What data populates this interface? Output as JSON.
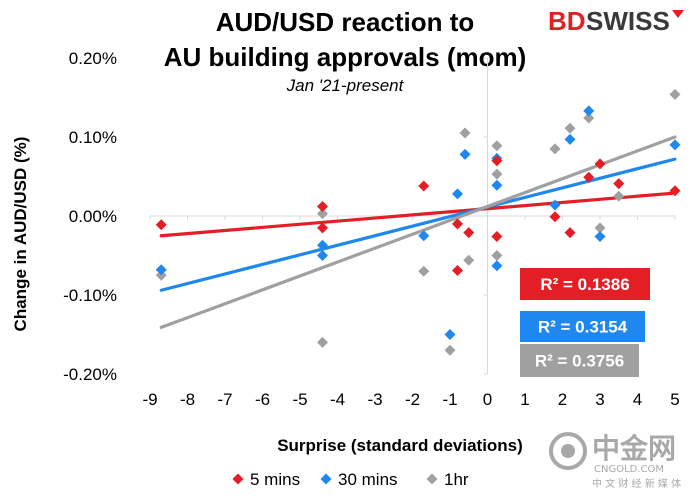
{
  "brand": {
    "bd": "BD",
    "swiss": "SWISS",
    "color_red": "#e31e24",
    "color_dark": "#3a3a3a"
  },
  "watermark": {
    "name": "中金网",
    "site": "CNGOLD.COM",
    "tagline": "中 文 财 经 新 媒 体",
    "color": "#9a9a9a"
  },
  "chart_data": {
    "type": "scatter",
    "title": "AUD/USD reaction to AU building approvals (mom)",
    "title_lines": [
      "AUD/USD reaction to",
      "AU building approvals (mom)"
    ],
    "subtitle": "Jan '21-present",
    "xlabel": "Surprise (standard deviations)",
    "ylabel": "Change in AUD/USD (%)",
    "xlim": [
      -9,
      5
    ],
    "ylim": [
      -0.2,
      0.2
    ],
    "x_ticks": [
      -9,
      -8,
      -7,
      -6,
      -5,
      -4,
      -3,
      -2,
      -1,
      0,
      1,
      2,
      3,
      4,
      5
    ],
    "y_ticks": [
      {
        "value": 0.2,
        "label": "0.20%"
      },
      {
        "value": 0.1,
        "label": "0.10%"
      },
      {
        "value": 0.0,
        "label": "0.00%"
      },
      {
        "value": -0.1,
        "label": "-0.10%"
      },
      {
        "value": -0.2,
        "label": "-0.20%"
      }
    ],
    "grid": false,
    "legend_position": "bottom",
    "marker": "diamond",
    "series": [
      {
        "name": "5 mins",
        "color": "#e31e24",
        "points": [
          [
            -8.7,
            -0.011
          ],
          [
            -4.4,
            0.012
          ],
          [
            -4.4,
            -0.015
          ],
          [
            -1.7,
            0.038
          ],
          [
            -0.8,
            -0.069
          ],
          [
            -0.8,
            -0.01
          ],
          [
            -0.5,
            -0.021
          ],
          [
            0.25,
            -0.026
          ],
          [
            0.25,
            0.07
          ],
          [
            1.8,
            -0.001
          ],
          [
            2.2,
            -0.021
          ],
          [
            2.7,
            0.049
          ],
          [
            3.0,
            0.066
          ],
          [
            3.5,
            0.041
          ],
          [
            5.0,
            0.032
          ]
        ],
        "trend": [
          [
            -8.7,
            -0.025
          ],
          [
            5.0,
            0.029
          ]
        ],
        "r2_label": "R² = 0.1386"
      },
      {
        "name": "30 mins",
        "color": "#1e88f0",
        "points": [
          [
            -8.7,
            -0.068
          ],
          [
            -4.4,
            -0.037
          ],
          [
            -4.4,
            -0.05
          ],
          [
            -1.7,
            -0.025
          ],
          [
            -1.0,
            -0.15
          ],
          [
            -0.8,
            0.028
          ],
          [
            -0.6,
            0.078
          ],
          [
            0.25,
            0.039
          ],
          [
            0.25,
            0.073
          ],
          [
            0.25,
            -0.063
          ],
          [
            1.8,
            0.014
          ],
          [
            2.2,
            0.097
          ],
          [
            2.7,
            0.133
          ],
          [
            3.0,
            -0.026
          ],
          [
            5.0,
            0.09
          ]
        ],
        "trend": [
          [
            -8.7,
            -0.094
          ],
          [
            5.0,
            0.072
          ]
        ],
        "r2_label": "R² = 0.3154"
      },
      {
        "name": "1hr",
        "color": "#a0a0a0",
        "points": [
          [
            -8.7,
            -0.075
          ],
          [
            -4.4,
            0.003
          ],
          [
            -4.4,
            -0.16
          ],
          [
            -1.7,
            -0.07
          ],
          [
            -1.0,
            -0.17
          ],
          [
            -0.8,
            -0.01
          ],
          [
            -0.6,
            0.105
          ],
          [
            -0.5,
            -0.056
          ],
          [
            0.25,
            0.089
          ],
          [
            0.25,
            0.053
          ],
          [
            0.25,
            -0.05
          ],
          [
            1.8,
            0.085
          ],
          [
            2.2,
            0.111
          ],
          [
            2.7,
            0.124
          ],
          [
            3.0,
            -0.015
          ],
          [
            3.5,
            0.025
          ],
          [
            5.0,
            0.154
          ]
        ],
        "trend": [
          [
            -8.7,
            -0.141
          ],
          [
            5.0,
            0.1
          ]
        ],
        "r2_label": "R² = 0.3756"
      }
    ]
  }
}
